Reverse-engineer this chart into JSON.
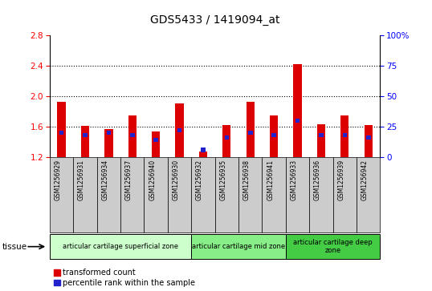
{
  "title": "GDS5433 / 1419094_at",
  "samples": [
    "GSM1256929",
    "GSM1256931",
    "GSM1256934",
    "GSM1256937",
    "GSM1256940",
    "GSM1256930",
    "GSM1256932",
    "GSM1256935",
    "GSM1256938",
    "GSM1256941",
    "GSM1256933",
    "GSM1256936",
    "GSM1256939",
    "GSM1256942"
  ],
  "transformed_count": [
    1.92,
    1.61,
    1.57,
    1.75,
    1.54,
    1.9,
    1.27,
    1.62,
    1.92,
    1.75,
    2.42,
    1.63,
    1.75,
    1.62
  ],
  "percentile_rank": [
    20,
    18,
    20,
    18,
    14,
    22,
    6,
    16,
    20,
    18,
    30,
    18,
    18,
    16
  ],
  "ylim_left": [
    1.2,
    2.8
  ],
  "ylim_right": [
    0,
    100
  ],
  "yticks_left": [
    1.2,
    1.6,
    2.0,
    2.4,
    2.8
  ],
  "yticks_right": [
    0,
    25,
    50,
    75,
    100
  ],
  "bar_color_red": "#dd0000",
  "bar_color_blue": "#2222cc",
  "bar_width": 0.35,
  "groups": [
    {
      "label": "articular cartilage superficial zone",
      "start": 0,
      "end": 6,
      "color": "#ccffcc"
    },
    {
      "label": "articular cartilage mid zone",
      "start": 6,
      "end": 10,
      "color": "#88ee88"
    },
    {
      "label": "articular cartilage deep\nzone",
      "start": 10,
      "end": 14,
      "color": "#44cc44"
    }
  ],
  "tissue_label": "tissue",
  "legend_red": "transformed count",
  "legend_blue": "percentile rank within the sample",
  "sample_box_color": "#cccccc",
  "plot_bg": "#ffffff",
  "dotted_yticks": [
    1.6,
    2.0,
    2.4
  ]
}
